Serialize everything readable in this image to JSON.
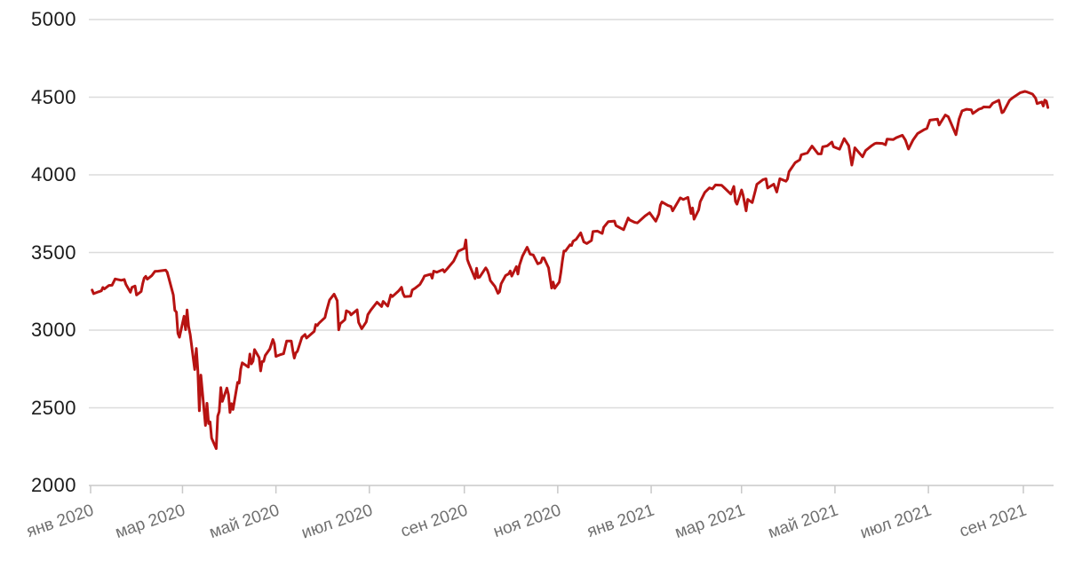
{
  "chart_data": {
    "type": "line",
    "title": "",
    "xlabel": "",
    "ylabel": "",
    "legend": "none",
    "grid": "horizontal",
    "line_color": "#b71312",
    "grid_color": "#dcdcdc",
    "axis_color": "#c9c9c9",
    "y_label_color": "#1b1b1b",
    "x_label_color": "#6f6f6f",
    "background_color": "#ffffff",
    "ylim": [
      2000,
      5000
    ],
    "y_ticks": [
      5000,
      4500,
      4000,
      3500,
      3000,
      2500,
      2000
    ],
    "x_ticks": [
      {
        "label": "янв 2020",
        "date": "2020-01-01"
      },
      {
        "label": "мар 2020",
        "date": "2020-03-01"
      },
      {
        "label": "май 2020",
        "date": "2020-05-01"
      },
      {
        "label": "июл 2020",
        "date": "2020-07-01"
      },
      {
        "label": "сен 2020",
        "date": "2020-09-01"
      },
      {
        "label": "ноя 2020",
        "date": "2020-11-01"
      },
      {
        "label": "янв 2021",
        "date": "2021-01-01"
      },
      {
        "label": "мар 2021",
        "date": "2021-03-01"
      },
      {
        "label": "май 2021",
        "date": "2021-05-01"
      },
      {
        "label": "июл 2021",
        "date": "2021-07-01"
      },
      {
        "label": "сен 2021",
        "date": "2021-09-01"
      }
    ],
    "points": [
      [
        "2020-01-02",
        3258
      ],
      [
        "2020-01-03",
        3235
      ],
      [
        "2020-01-06",
        3246
      ],
      [
        "2020-01-08",
        3253
      ],
      [
        "2020-01-09",
        3275
      ],
      [
        "2020-01-10",
        3265
      ],
      [
        "2020-01-13",
        3288
      ],
      [
        "2020-01-15",
        3289
      ],
      [
        "2020-01-17",
        3330
      ],
      [
        "2020-01-21",
        3321
      ],
      [
        "2020-01-23",
        3326
      ],
      [
        "2020-01-24",
        3295
      ],
      [
        "2020-01-27",
        3244
      ],
      [
        "2020-01-28",
        3276
      ],
      [
        "2020-01-30",
        3284
      ],
      [
        "2020-01-31",
        3226
      ],
      [
        "2020-02-03",
        3249
      ],
      [
        "2020-02-04",
        3298
      ],
      [
        "2020-02-05",
        3335
      ],
      [
        "2020-02-06",
        3346
      ],
      [
        "2020-02-07",
        3328
      ],
      [
        "2020-02-10",
        3352
      ],
      [
        "2020-02-12",
        3379
      ],
      [
        "2020-02-14",
        3380
      ],
      [
        "2020-02-19",
        3386
      ],
      [
        "2020-02-20",
        3373
      ],
      [
        "2020-02-21",
        3338
      ],
      [
        "2020-02-24",
        3226
      ],
      [
        "2020-02-25",
        3128
      ],
      [
        "2020-02-26",
        3116
      ],
      [
        "2020-02-27",
        2979
      ],
      [
        "2020-02-28",
        2954
      ],
      [
        "2020-03-02",
        3090
      ],
      [
        "2020-03-03",
        3003
      ],
      [
        "2020-03-04",
        3130
      ],
      [
        "2020-03-05",
        3024
      ],
      [
        "2020-03-06",
        2972
      ],
      [
        "2020-03-09",
        2746
      ],
      [
        "2020-03-10",
        2882
      ],
      [
        "2020-03-11",
        2741
      ],
      [
        "2020-03-12",
        2481
      ],
      [
        "2020-03-13",
        2711
      ],
      [
        "2020-03-16",
        2386
      ],
      [
        "2020-03-17",
        2529
      ],
      [
        "2020-03-18",
        2398
      ],
      [
        "2020-03-19",
        2409
      ],
      [
        "2020-03-20",
        2305
      ],
      [
        "2020-03-23",
        2237
      ],
      [
        "2020-03-24",
        2447
      ],
      [
        "2020-03-25",
        2476
      ],
      [
        "2020-03-26",
        2630
      ],
      [
        "2020-03-27",
        2541
      ],
      [
        "2020-03-30",
        2627
      ],
      [
        "2020-03-31",
        2585
      ],
      [
        "2020-04-01",
        2470
      ],
      [
        "2020-04-02",
        2527
      ],
      [
        "2020-04-03",
        2489
      ],
      [
        "2020-04-06",
        2664
      ],
      [
        "2020-04-07",
        2659
      ],
      [
        "2020-04-08",
        2750
      ],
      [
        "2020-04-09",
        2790
      ],
      [
        "2020-04-13",
        2762
      ],
      [
        "2020-04-14",
        2846
      ],
      [
        "2020-04-15",
        2783
      ],
      [
        "2020-04-16",
        2800
      ],
      [
        "2020-04-17",
        2875
      ],
      [
        "2020-04-20",
        2823
      ],
      [
        "2020-04-21",
        2737
      ],
      [
        "2020-04-22",
        2799
      ],
      [
        "2020-04-23",
        2798
      ],
      [
        "2020-04-24",
        2837
      ],
      [
        "2020-04-27",
        2878
      ],
      [
        "2020-04-29",
        2940
      ],
      [
        "2020-04-30",
        2912
      ],
      [
        "2020-05-01",
        2831
      ],
      [
        "2020-05-04",
        2843
      ],
      [
        "2020-05-06",
        2848
      ],
      [
        "2020-05-08",
        2930
      ],
      [
        "2020-05-11",
        2930
      ],
      [
        "2020-05-12",
        2870
      ],
      [
        "2020-05-13",
        2820
      ],
      [
        "2020-05-14",
        2853
      ],
      [
        "2020-05-15",
        2864
      ],
      [
        "2020-05-18",
        2954
      ],
      [
        "2020-05-20",
        2972
      ],
      [
        "2020-05-21",
        2949
      ],
      [
        "2020-05-26",
        2992
      ],
      [
        "2020-05-27",
        3036
      ],
      [
        "2020-05-28",
        3030
      ],
      [
        "2020-05-29",
        3044
      ],
      [
        "2020-06-02",
        3081
      ],
      [
        "2020-06-03",
        3123
      ],
      [
        "2020-06-05",
        3194
      ],
      [
        "2020-06-08",
        3232
      ],
      [
        "2020-06-10",
        3190
      ],
      [
        "2020-06-11",
        3002
      ],
      [
        "2020-06-12",
        3041
      ],
      [
        "2020-06-15",
        3067
      ],
      [
        "2020-06-16",
        3125
      ],
      [
        "2020-06-18",
        3115
      ],
      [
        "2020-06-19",
        3098
      ],
      [
        "2020-06-23",
        3131
      ],
      [
        "2020-06-24",
        3050
      ],
      [
        "2020-06-26",
        3009
      ],
      [
        "2020-06-29",
        3053
      ],
      [
        "2020-06-30",
        3100
      ],
      [
        "2020-07-02",
        3130
      ],
      [
        "2020-07-06",
        3180
      ],
      [
        "2020-07-09",
        3152
      ],
      [
        "2020-07-10",
        3185
      ],
      [
        "2020-07-13",
        3155
      ],
      [
        "2020-07-15",
        3227
      ],
      [
        "2020-07-16",
        3216
      ],
      [
        "2020-07-20",
        3252
      ],
      [
        "2020-07-22",
        3276
      ],
      [
        "2020-07-23",
        3236
      ],
      [
        "2020-07-24",
        3216
      ],
      [
        "2020-07-28",
        3218
      ],
      [
        "2020-07-29",
        3258
      ],
      [
        "2020-07-31",
        3271
      ],
      [
        "2020-08-03",
        3294
      ],
      [
        "2020-08-05",
        3328
      ],
      [
        "2020-08-06",
        3349
      ],
      [
        "2020-08-10",
        3360
      ],
      [
        "2020-08-11",
        3334
      ],
      [
        "2020-08-12",
        3380
      ],
      [
        "2020-08-14",
        3373
      ],
      [
        "2020-08-18",
        3390
      ],
      [
        "2020-08-19",
        3375
      ],
      [
        "2020-08-21",
        3397
      ],
      [
        "2020-08-25",
        3444
      ],
      [
        "2020-08-27",
        3485
      ],
      [
        "2020-08-28",
        3508
      ],
      [
        "2020-09-01",
        3527
      ],
      [
        "2020-09-02",
        3581
      ],
      [
        "2020-09-03",
        3455
      ],
      [
        "2020-09-04",
        3427
      ],
      [
        "2020-09-08",
        3332
      ],
      [
        "2020-09-09",
        3399
      ],
      [
        "2020-09-10",
        3339
      ],
      [
        "2020-09-11",
        3341
      ],
      [
        "2020-09-15",
        3401
      ],
      [
        "2020-09-16",
        3385
      ],
      [
        "2020-09-17",
        3357
      ],
      [
        "2020-09-18",
        3319
      ],
      [
        "2020-09-21",
        3281
      ],
      [
        "2020-09-23",
        3237
      ],
      [
        "2020-09-24",
        3247
      ],
      [
        "2020-09-25",
        3298
      ],
      [
        "2020-09-28",
        3352
      ],
      [
        "2020-09-30",
        3363
      ],
      [
        "2020-10-01",
        3381
      ],
      [
        "2020-10-02",
        3348
      ],
      [
        "2020-10-05",
        3409
      ],
      [
        "2020-10-06",
        3361
      ],
      [
        "2020-10-07",
        3419
      ],
      [
        "2020-10-09",
        3477
      ],
      [
        "2020-10-12",
        3534
      ],
      [
        "2020-10-13",
        3512
      ],
      [
        "2020-10-14",
        3489
      ],
      [
        "2020-10-16",
        3484
      ],
      [
        "2020-10-19",
        3427
      ],
      [
        "2020-10-21",
        3436
      ],
      [
        "2020-10-22",
        3465
      ],
      [
        "2020-10-23",
        3465
      ],
      [
        "2020-10-26",
        3401
      ],
      [
        "2020-10-28",
        3271
      ],
      [
        "2020-10-29",
        3310
      ],
      [
        "2020-10-30",
        3270
      ],
      [
        "2020-11-02",
        3310
      ],
      [
        "2020-11-03",
        3369
      ],
      [
        "2020-11-04",
        3443
      ],
      [
        "2020-11-05",
        3510
      ],
      [
        "2020-11-06",
        3509
      ],
      [
        "2020-11-09",
        3550
      ],
      [
        "2020-11-10",
        3545
      ],
      [
        "2020-11-11",
        3572
      ],
      [
        "2020-11-13",
        3585
      ],
      [
        "2020-11-16",
        3627
      ],
      [
        "2020-11-18",
        3568
      ],
      [
        "2020-11-20",
        3558
      ],
      [
        "2020-11-23",
        3577
      ],
      [
        "2020-11-24",
        3635
      ],
      [
        "2020-11-27",
        3638
      ],
      [
        "2020-11-30",
        3622
      ],
      [
        "2020-12-01",
        3662
      ],
      [
        "2020-12-04",
        3699
      ],
      [
        "2020-12-08",
        3702
      ],
      [
        "2020-12-09",
        3673
      ],
      [
        "2020-12-11",
        3663
      ],
      [
        "2020-12-14",
        3647
      ],
      [
        "2020-12-17",
        3722
      ],
      [
        "2020-12-18",
        3709
      ],
      [
        "2020-12-21",
        3695
      ],
      [
        "2020-12-23",
        3690
      ],
      [
        "2020-12-28",
        3735
      ],
      [
        "2020-12-31",
        3756
      ],
      [
        "2021-01-04",
        3701
      ],
      [
        "2021-01-06",
        3748
      ],
      [
        "2021-01-07",
        3804
      ],
      [
        "2021-01-08",
        3825
      ],
      [
        "2021-01-12",
        3802
      ],
      [
        "2021-01-14",
        3796
      ],
      [
        "2021-01-15",
        3768
      ],
      [
        "2021-01-20",
        3852
      ],
      [
        "2021-01-22",
        3841
      ],
      [
        "2021-01-25",
        3855
      ],
      [
        "2021-01-27",
        3751
      ],
      [
        "2021-01-28",
        3787
      ],
      [
        "2021-01-29",
        3714
      ],
      [
        "2021-02-01",
        3774
      ],
      [
        "2021-02-02",
        3826
      ],
      [
        "2021-02-05",
        3887
      ],
      [
        "2021-02-08",
        3916
      ],
      [
        "2021-02-10",
        3910
      ],
      [
        "2021-02-12",
        3935
      ],
      [
        "2021-02-16",
        3933
      ],
      [
        "2021-02-18",
        3914
      ],
      [
        "2021-02-22",
        3876
      ],
      [
        "2021-02-24",
        3925
      ],
      [
        "2021-02-25",
        3829
      ],
      [
        "2021-02-26",
        3811
      ],
      [
        "2021-03-01",
        3902
      ],
      [
        "2021-03-02",
        3870
      ],
      [
        "2021-03-04",
        3768
      ],
      [
        "2021-03-05",
        3842
      ],
      [
        "2021-03-08",
        3821
      ],
      [
        "2021-03-10",
        3899
      ],
      [
        "2021-03-11",
        3939
      ],
      [
        "2021-03-15",
        3969
      ],
      [
        "2021-03-17",
        3974
      ],
      [
        "2021-03-18",
        3915
      ],
      [
        "2021-03-22",
        3940
      ],
      [
        "2021-03-24",
        3889
      ],
      [
        "2021-03-26",
        3975
      ],
      [
        "2021-03-30",
        3959
      ],
      [
        "2021-03-31",
        3973
      ],
      [
        "2021-04-01",
        4020
      ],
      [
        "2021-04-05",
        4078
      ],
      [
        "2021-04-08",
        4097
      ],
      [
        "2021-04-09",
        4129
      ],
      [
        "2021-04-13",
        4141
      ],
      [
        "2021-04-16",
        4185
      ],
      [
        "2021-04-20",
        4135
      ],
      [
        "2021-04-22",
        4135
      ],
      [
        "2021-04-23",
        4180
      ],
      [
        "2021-04-26",
        4187
      ],
      [
        "2021-04-29",
        4211
      ],
      [
        "2021-04-30",
        4181
      ],
      [
        "2021-05-04",
        4165
      ],
      [
        "2021-05-07",
        4233
      ],
      [
        "2021-05-10",
        4188
      ],
      [
        "2021-05-12",
        4063
      ],
      [
        "2021-05-13",
        4113
      ],
      [
        "2021-05-14",
        4174
      ],
      [
        "2021-05-19",
        4116
      ],
      [
        "2021-05-21",
        4156
      ],
      [
        "2021-05-25",
        4188
      ],
      [
        "2021-05-27",
        4201
      ],
      [
        "2021-05-28",
        4204
      ],
      [
        "2021-06-01",
        4202
      ],
      [
        "2021-06-03",
        4193
      ],
      [
        "2021-06-04",
        4230
      ],
      [
        "2021-06-08",
        4227
      ],
      [
        "2021-06-10",
        4239
      ],
      [
        "2021-06-14",
        4255
      ],
      [
        "2021-06-16",
        4224
      ],
      [
        "2021-06-18",
        4166
      ],
      [
        "2021-06-21",
        4225
      ],
      [
        "2021-06-24",
        4266
      ],
      [
        "2021-06-28",
        4290
      ],
      [
        "2021-06-30",
        4298
      ],
      [
        "2021-07-02",
        4352
      ],
      [
        "2021-07-07",
        4358
      ],
      [
        "2021-07-08",
        4321
      ],
      [
        "2021-07-12",
        4385
      ],
      [
        "2021-07-14",
        4374
      ],
      [
        "2021-07-16",
        4327
      ],
      [
        "2021-07-19",
        4258
      ],
      [
        "2021-07-21",
        4358
      ],
      [
        "2021-07-23",
        4412
      ],
      [
        "2021-07-26",
        4422
      ],
      [
        "2021-07-29",
        4419
      ],
      [
        "2021-07-30",
        4395
      ],
      [
        "2021-08-03",
        4423
      ],
      [
        "2021-08-05",
        4429
      ],
      [
        "2021-08-06",
        4437
      ],
      [
        "2021-08-10",
        4436
      ],
      [
        "2021-08-12",
        4461
      ],
      [
        "2021-08-16",
        4480
      ],
      [
        "2021-08-18",
        4400
      ],
      [
        "2021-08-19",
        4405
      ],
      [
        "2021-08-23",
        4480
      ],
      [
        "2021-08-25",
        4496
      ],
      [
        "2021-08-27",
        4509
      ],
      [
        "2021-08-30",
        4529
      ],
      [
        "2021-09-02",
        4537
      ],
      [
        "2021-09-03",
        4535
      ],
      [
        "2021-09-07",
        4520
      ],
      [
        "2021-09-09",
        4493
      ],
      [
        "2021-09-10",
        4459
      ],
      [
        "2021-09-13",
        4469
      ],
      [
        "2021-09-14",
        4443
      ],
      [
        "2021-09-15",
        4481
      ],
      [
        "2021-09-16",
        4474
      ],
      [
        "2021-09-17",
        4433
      ]
    ]
  }
}
